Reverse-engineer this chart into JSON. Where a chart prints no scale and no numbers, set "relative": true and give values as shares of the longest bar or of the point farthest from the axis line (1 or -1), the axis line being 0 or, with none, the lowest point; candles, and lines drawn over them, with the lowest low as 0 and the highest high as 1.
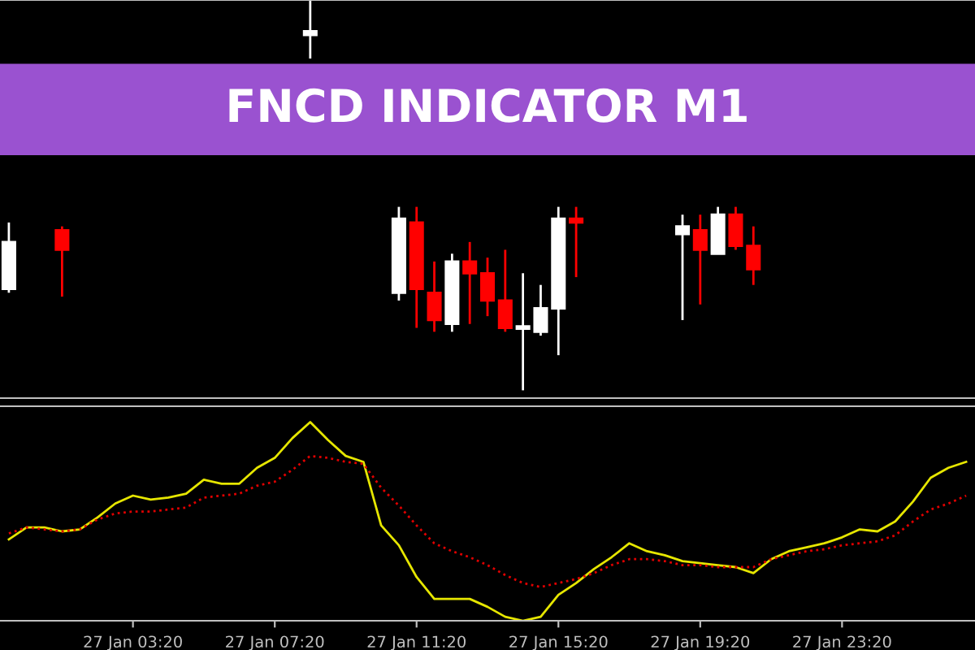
{
  "chart_data": [
    {
      "type": "candlestick",
      "title": "FNCD INDICATOR M1",
      "relative": true,
      "tick_labels": false,
      "categories": [
        null,
        null,
        null,
        null,
        null,
        null,
        null,
        null,
        null,
        null,
        null,
        null,
        null,
        null,
        null,
        null,
        null,
        null,
        null,
        null,
        null,
        null,
        null,
        null,
        null,
        null,
        null,
        null,
        null,
        null,
        null,
        null,
        null,
        null,
        null,
        null,
        null,
        null,
        null,
        null,
        null,
        null,
        null,
        null,
        null,
        null,
        null,
        null,
        null,
        null,
        null,
        null,
        null,
        null,
        null
      ],
      "ohlc": [
        [
          0.26,
          0.43,
          0.25,
          0.38
        ],
        null,
        null,
        [
          0.41,
          0.42,
          0.24,
          0.36
        ],
        null,
        null,
        null,
        null,
        null,
        null,
        null,
        null,
        null,
        null,
        null,
        null,
        null,
        [
          0.91,
          1,
          0.85,
          0.92
        ],
        null,
        null,
        null,
        null,
        [
          0.25,
          0.47,
          0.23,
          0.44
        ],
        [
          0.43,
          0.47,
          0.16,
          0.26
        ],
        [
          0.25,
          0.33,
          0.15,
          0.18
        ],
        [
          0.17,
          0.35,
          0.15,
          0.33
        ],
        [
          0.33,
          0.38,
          0.17,
          0.3
        ],
        [
          0.3,
          0.34,
          0.19,
          0.23
        ],
        [
          0.23,
          0.36,
          0.15,
          0.16
        ],
        [
          0.158,
          0.3,
          0,
          0.164
        ],
        [
          0.15,
          0.27,
          0.14,
          0.21
        ],
        [
          0.21,
          0.47,
          0.09,
          0.44
        ],
        [
          0.44,
          0.47,
          0.29,
          0.43
        ],
        null,
        null,
        null,
        null,
        null,
        [
          0.4,
          0.45,
          0.18,
          0.42
        ],
        [
          0.41,
          0.45,
          0.22,
          0.36
        ],
        [
          0.35,
          0.47,
          0.35,
          0.45
        ],
        [
          0.45,
          0.47,
          0.36,
          0.37
        ],
        [
          0.37,
          0.42,
          0.27,
          0.31
        ],
        null,
        null,
        null,
        null,
        null,
        null,
        null,
        null,
        null,
        null,
        null,
        null
      ],
      "colors": [
        "#ffffff",
        null,
        null,
        "#ff0000",
        null,
        null,
        null,
        null,
        null,
        null,
        null,
        null,
        null,
        null,
        null,
        null,
        null,
        "#ffffff",
        null,
        null,
        null,
        null,
        "#ffffff",
        "#ff0000",
        "#ff0000",
        "#ffffff",
        "#ff0000",
        "#ff0000",
        "#ff0000",
        "#ffffff",
        "#ffffff",
        "#ffffff",
        "#ff0000",
        null,
        null,
        null,
        null,
        null,
        "#ffffff",
        "#ff0000",
        "#ffffff",
        "#ff0000",
        "#ff0000",
        null,
        null,
        null,
        null,
        null,
        null,
        null,
        null,
        null,
        null,
        null,
        null
      ]
    },
    {
      "type": "line",
      "relative": true,
      "tick_labels": "x",
      "categories": [
        null,
        null,
        null,
        null,
        null,
        null,
        null,
        "27 Jan 03:20",
        null,
        null,
        null,
        null,
        null,
        null,
        null,
        "27 Jan 07:20",
        null,
        null,
        null,
        null,
        null,
        null,
        null,
        "27 Jan 11:20",
        null,
        null,
        null,
        null,
        null,
        null,
        null,
        "27 Jan 15:20",
        null,
        null,
        null,
        null,
        null,
        null,
        null,
        "27 Jan 19:20",
        null,
        null,
        null,
        null,
        null,
        null,
        null,
        "27 Jan 23:20",
        null,
        null,
        null,
        null,
        null,
        null,
        null
      ],
      "series": [
        {
          "color": "#e6e600",
          "line_style": "solid",
          "values": [
            0.41,
            0.47,
            0.47,
            0.45,
            0.46,
            0.52,
            0.59,
            0.63,
            0.61,
            0.62,
            0.64,
            0.71,
            0.69,
            0.69,
            0.77,
            0.82,
            0.92,
            1.0,
            0.91,
            0.83,
            0.8,
            0.48,
            0.38,
            0.22,
            0.11,
            0.11,
            0.11,
            0.07,
            0.02,
            0,
            0.02,
            0.13,
            0.19,
            0.26,
            0.32,
            0.39,
            0.35,
            0.33,
            0.3,
            0.29,
            0.28,
            0.27,
            0.24,
            0.31,
            0.35,
            0.37,
            0.39,
            0.42,
            0.46,
            0.45,
            0.5,
            0.6,
            0.72,
            0.77,
            0.8
          ]
        },
        {
          "color": "#e00000",
          "line_style": "dotted",
          "values": [
            0.44,
            0.47,
            0.46,
            0.45,
            0.46,
            0.51,
            0.54,
            0.55,
            0.55,
            0.56,
            0.57,
            0.62,
            0.63,
            0.64,
            0.68,
            0.7,
            0.76,
            0.83,
            0.82,
            0.8,
            0.79,
            0.67,
            0.58,
            0.48,
            0.39,
            0.35,
            0.32,
            0.28,
            0.23,
            0.19,
            0.17,
            0.19,
            0.21,
            0.24,
            0.28,
            0.31,
            0.31,
            0.3,
            0.28,
            0.28,
            0.27,
            0.27,
            0.27,
            0.31,
            0.33,
            0.35,
            0.36,
            0.38,
            0.39,
            0.4,
            0.43,
            0.5,
            0.56,
            0.59,
            0.63
          ]
        }
      ]
    }
  ]
}
